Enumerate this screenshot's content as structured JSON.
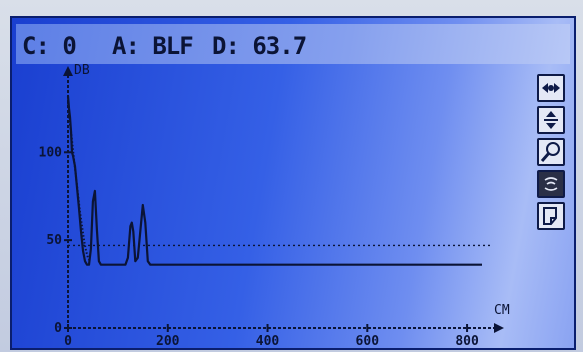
{
  "header": {
    "c_text": "C: 0",
    "a_text": "A: BLF",
    "d_text": "D: 63.7"
  },
  "toolbar": {
    "tools": [
      {
        "name": "pan-horizontal-icon"
      },
      {
        "name": "pan-vertical-icon"
      },
      {
        "name": "zoom-icon"
      },
      {
        "name": "signal-icon",
        "selected": true
      },
      {
        "name": "page-icon"
      }
    ]
  },
  "colors": {
    "screen": "#2a55e0",
    "ink": "#0b1436",
    "selected_tool": "#2a2f46"
  },
  "chart_data": {
    "type": "line",
    "xlabel": "CM",
    "ylabel": "DB",
    "xlim": [
      0,
      850
    ],
    "ylim": [
      0,
      140
    ],
    "x_ticks": [
      0,
      200,
      400,
      600,
      800
    ],
    "y_ticks": [
      0,
      50,
      100
    ],
    "reference_line": 47,
    "series": [
      {
        "x": [
          0,
          2,
          4,
          6,
          8,
          10,
          14,
          18,
          22,
          26,
          30,
          34,
          38,
          42,
          46,
          50,
          54,
          58,
          62,
          66,
          70,
          75,
          80,
          85,
          95,
          105,
          115,
          120,
          125,
          128,
          131,
          135,
          140,
          145,
          150,
          155,
          160,
          165,
          170,
          175,
          180,
          200,
          300,
          400,
          500,
          600,
          700,
          800,
          830
        ],
        "y": [
          132,
          125,
          120,
          112,
          100,
          98,
          92,
          80,
          68,
          55,
          44,
          38,
          36,
          36,
          45,
          72,
          78,
          56,
          38,
          36,
          36,
          36,
          36,
          36,
          36,
          36,
          36,
          40,
          58,
          60,
          55,
          38,
          40,
          55,
          70,
          60,
          38,
          36,
          36,
          36,
          36,
          36,
          36,
          36,
          36,
          36,
          36,
          36,
          36
        ]
      },
      {
        "style": "dotted",
        "x": [
          0,
          3,
          6,
          9,
          12,
          16,
          20,
          24,
          28,
          32,
          36,
          40,
          44
        ],
        "y": [
          128,
          118,
          112,
          104,
          96,
          86,
          76,
          66,
          58,
          50,
          44,
          40,
          38
        ]
      }
    ]
  }
}
